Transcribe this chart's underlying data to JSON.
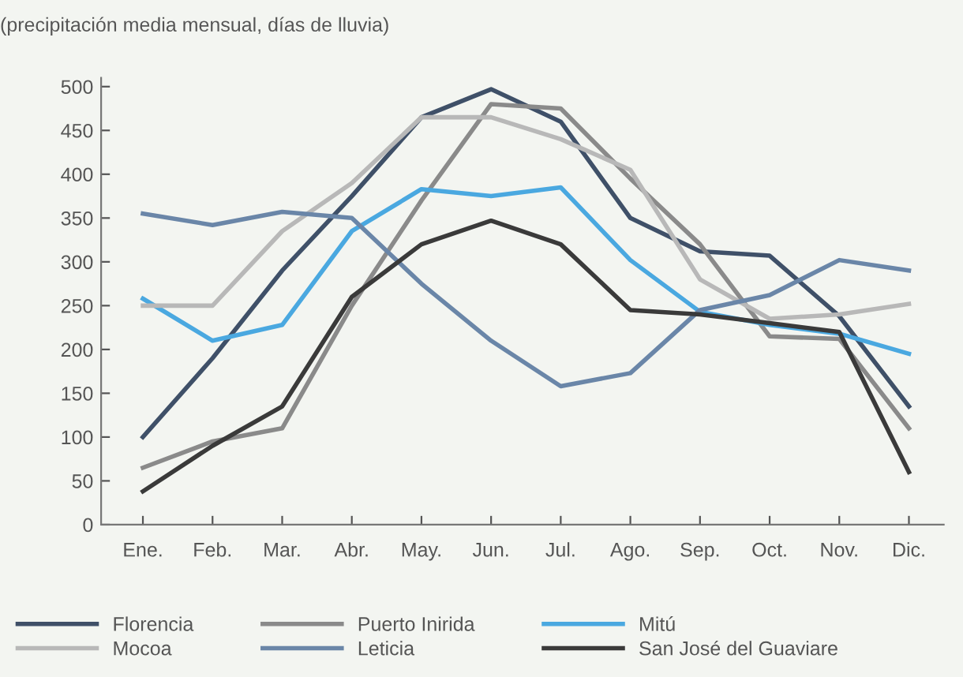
{
  "chart_data": {
    "type": "line",
    "subtitle": "(precipitación media mensual, días de lluvia)",
    "categories": [
      "Ene.",
      "Feb.",
      "Mar.",
      "Abr.",
      "May.",
      "Jun.",
      "Jul.",
      "Ago.",
      "Sep.",
      "Oct.",
      "Nov.",
      "Dic."
    ],
    "series": [
      {
        "name": "Florencia",
        "color": "#3f5068",
        "values": [
          100,
          190,
          290,
          375,
          465,
          497,
          460,
          350,
          312,
          307,
          238,
          135
        ]
      },
      {
        "name": "Puerto Inirida",
        "color": "#8a8a8a",
        "values": [
          65,
          95,
          110,
          250,
          370,
          480,
          475,
          395,
          320,
          215,
          212,
          110
        ]
      },
      {
        "name": "Mitú",
        "color": "#4aa8e0",
        "values": [
          258,
          210,
          228,
          335,
          383,
          375,
          385,
          302,
          243,
          228,
          218,
          195
        ]
      },
      {
        "name": "Mocoa",
        "color": "#b8b8b8",
        "values": [
          250,
          250,
          335,
          390,
          465,
          465,
          440,
          405,
          280,
          235,
          240,
          252
        ]
      },
      {
        "name": "Leticia",
        "color": "#6a86a8",
        "values": [
          355,
          342,
          357,
          350,
          275,
          210,
          158,
          173,
          245,
          262,
          302,
          290
        ]
      },
      {
        "name": "San José del Guaviare",
        "color": "#3a3a3a",
        "values": [
          38,
          90,
          135,
          260,
          320,
          347,
          320,
          245,
          240,
          230,
          220,
          60
        ]
      }
    ],
    "ylim": [
      0,
      510
    ],
    "yticks": [
      0,
      50,
      100,
      150,
      200,
      250,
      300,
      350,
      400,
      450,
      500
    ],
    "grid": false,
    "legend": "bottom",
    "marker": "none",
    "line_style": "solid"
  }
}
